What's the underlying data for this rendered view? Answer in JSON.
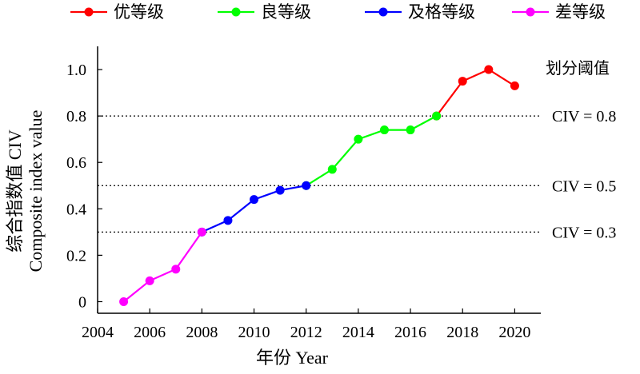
{
  "chart_data": {
    "type": "line",
    "xlabel": "年份 Year",
    "ylabel_cn": "综合指数值 CIV",
    "ylabel_en": "Composite index value",
    "xlim": [
      2004,
      2021
    ],
    "ylim": [
      -0.05,
      1.1
    ],
    "x_ticks": [
      "2004",
      "2006",
      "2008",
      "2010",
      "2012",
      "2014",
      "2016",
      "2018",
      "2020"
    ],
    "y_ticks": [
      "0",
      "0.2",
      "0.4",
      "0.6",
      "0.8",
      "1.0"
    ],
    "grid": false,
    "legend_position": "top",
    "threshold_title": "划分阈值",
    "thresholds": [
      {
        "value": 0.8,
        "label": "CIV = 0.8"
      },
      {
        "value": 0.5,
        "label": "CIV = 0.5"
      },
      {
        "value": 0.3,
        "label": "CIV = 0.3"
      }
    ],
    "series": [
      {
        "name": "优等级",
        "color": "#ff0000",
        "x": [
          2017,
          2018,
          2019,
          2020
        ],
        "y": [
          0.8,
          0.95,
          1.0,
          0.93
        ]
      },
      {
        "name": "良等级",
        "color": "#00ff00",
        "x": [
          2012,
          2013,
          2014,
          2015,
          2016,
          2017
        ],
        "y": [
          0.5,
          0.57,
          0.7,
          0.74,
          0.74,
          0.8
        ]
      },
      {
        "name": "及格等级",
        "color": "#0000ff",
        "x": [
          2008,
          2009,
          2010,
          2011,
          2012
        ],
        "y": [
          0.3,
          0.35,
          0.44,
          0.48,
          0.5
        ]
      },
      {
        "name": "差等级",
        "color": "#ff00ff",
        "x": [
          2005,
          2006,
          2007,
          2008
        ],
        "y": [
          0.0,
          0.09,
          0.14,
          0.3
        ]
      }
    ]
  }
}
